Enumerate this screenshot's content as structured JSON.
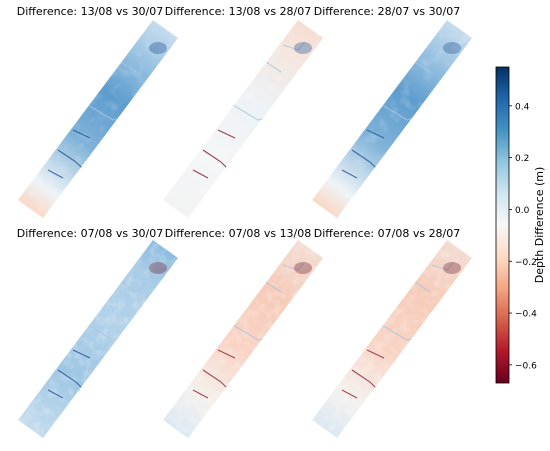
{
  "chart_data": {
    "type": "heatmap",
    "panels": [
      {
        "title": "Difference: 13/08 vs 30/07",
        "pattern": "positive-strong",
        "noise": "med"
      },
      {
        "title": "Difference: 13/08 vs 28/07",
        "pattern": "near-zero",
        "noise": "med"
      },
      {
        "title": "Difference: 28/07 vs 30/07",
        "pattern": "positive-strong",
        "noise": "med"
      },
      {
        "title": "Difference: 07/08 vs 30/07",
        "pattern": "positive-moderate",
        "noise": "high"
      },
      {
        "title": "Difference: 07/08 vs 13/08",
        "pattern": "negative-mild",
        "noise": "high"
      },
      {
        "title": "Difference: 07/08 vs 28/07",
        "pattern": "negative-mild",
        "noise": "high"
      }
    ],
    "colorbar": {
      "label": "Depth Difference (m)",
      "range": [
        -0.67,
        0.55
      ],
      "ticks": [
        0.4,
        0.2,
        0.0,
        -0.2,
        -0.4,
        -0.6
      ],
      "tick_labels": [
        "0.4",
        "0.2",
        "0.0",
        "−0.2",
        "−0.4",
        "−0.6"
      ],
      "colormap": "RdBu (diverging, blue = positive, red = negative)",
      "stops": [
        "#67001f",
        "#b2182b",
        "#d6604d",
        "#f4a582",
        "#fddbc7",
        "#f7f7f7",
        "#d1e5f0",
        "#92c5de",
        "#4393c3",
        "#2166ac",
        "#053061"
      ]
    }
  }
}
